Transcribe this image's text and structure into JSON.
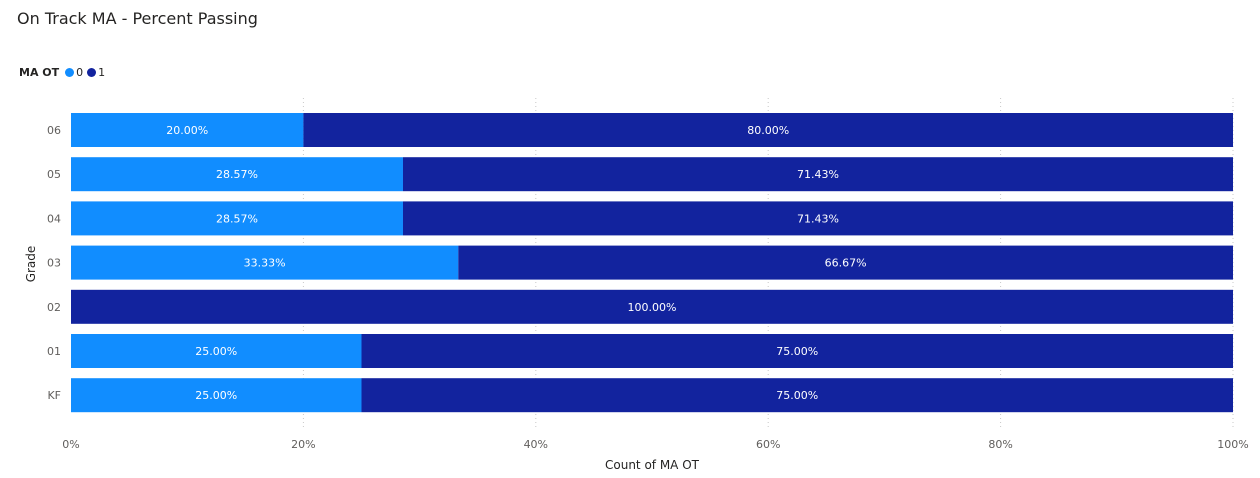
{
  "chart_data": {
    "type": "bar",
    "orientation": "horizontal",
    "stacked": "100%",
    "title": "On Track MA - Percent Passing",
    "xlabel": "Count of MA OT",
    "ylabel": "Grade",
    "categories": [
      "06",
      "05",
      "04",
      "03",
      "02",
      "01",
      "KF"
    ],
    "series": [
      {
        "name": "0",
        "color": "#118dff",
        "values": [
          20.0,
          28.57,
          28.57,
          33.33,
          0,
          25.0,
          25.0
        ],
        "labels": [
          "20.00%",
          "28.57%",
          "28.57%",
          "33.33%",
          "",
          "25.00%",
          "25.00%"
        ]
      },
      {
        "name": "1",
        "color": "#12239e",
        "values": [
          80.0,
          71.43,
          71.43,
          66.67,
          100.0,
          75.0,
          75.0
        ],
        "labels": [
          "80.00%",
          "71.43%",
          "71.43%",
          "66.67%",
          "100.00%",
          "75.00%",
          "75.00%"
        ]
      }
    ],
    "xlim": [
      0,
      100
    ],
    "xticks": [
      "0%",
      "20%",
      "40%",
      "60%",
      "80%",
      "100%"
    ],
    "grid": true,
    "legend": {
      "title": "MA OT",
      "placement": "top-left"
    }
  }
}
